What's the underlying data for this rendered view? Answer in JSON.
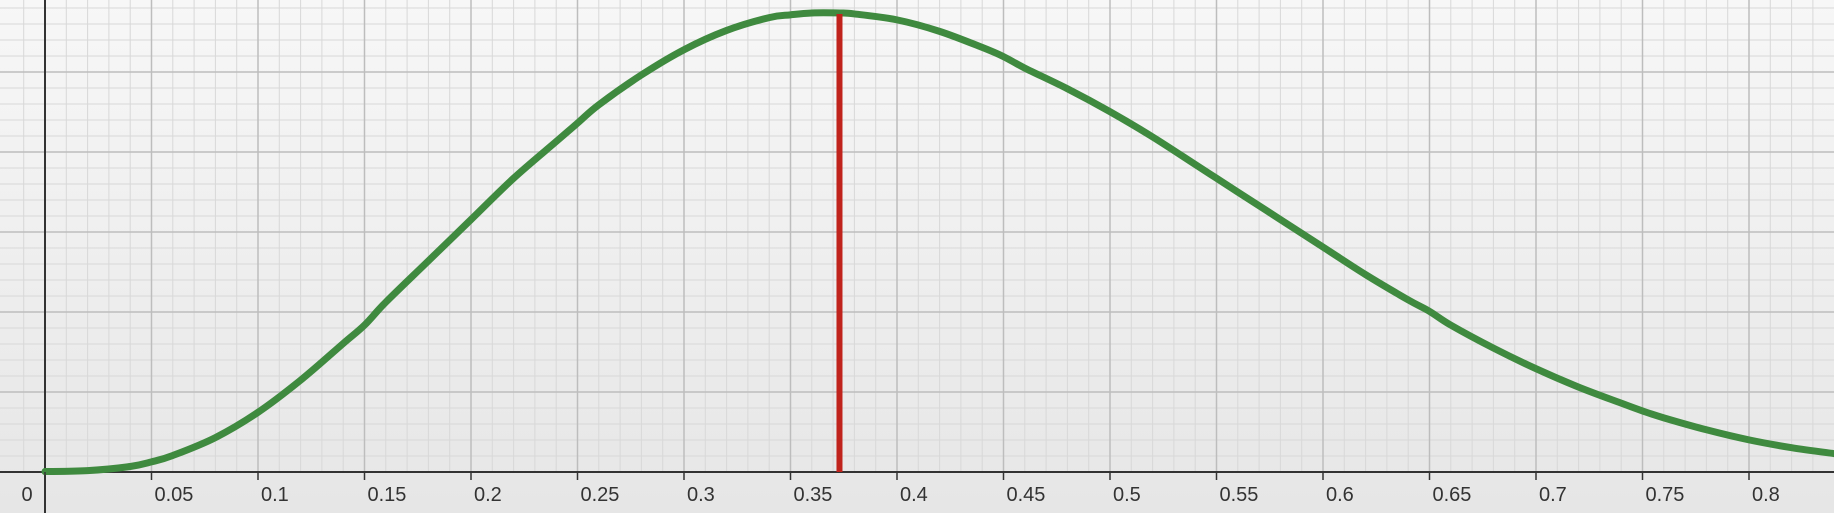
{
  "chart_data": {
    "type": "line",
    "title": "",
    "xlabel": "",
    "ylabel": "",
    "xlim": [
      -0.012,
      0.842
    ],
    "ylim": [
      0,
      1
    ],
    "grid": true,
    "x_ticks": [
      {
        "value": 0,
        "label": "0"
      },
      {
        "value": 0.05,
        "label": "0.05"
      },
      {
        "value": 0.1,
        "label": "0.1"
      },
      {
        "value": 0.15,
        "label": "0.15"
      },
      {
        "value": 0.2,
        "label": "0.2"
      },
      {
        "value": 0.25,
        "label": "0.25"
      },
      {
        "value": 0.3,
        "label": "0.3"
      },
      {
        "value": 0.35,
        "label": "0.35"
      },
      {
        "value": 0.4,
        "label": "0.4"
      },
      {
        "value": 0.45,
        "label": "0.45"
      },
      {
        "value": 0.5,
        "label": "0.5"
      },
      {
        "value": 0.55,
        "label": "0.55"
      },
      {
        "value": 0.6,
        "label": "0.6"
      },
      {
        "value": 0.65,
        "label": "0.65"
      },
      {
        "value": 0.7,
        "label": "0.7"
      },
      {
        "value": 0.75,
        "label": "0.75"
      },
      {
        "value": 0.8,
        "label": "0.8"
      }
    ],
    "series": [
      {
        "color": "#3f8a3f",
        "x": [
          0,
          0.02,
          0.04,
          0.05,
          0.06,
          0.08,
          0.1,
          0.12,
          0.14,
          0.15,
          0.16,
          0.18,
          0.2,
          0.22,
          0.24,
          0.25,
          0.26,
          0.28,
          0.3,
          0.32,
          0.34,
          0.35,
          0.36,
          0.373,
          0.38,
          0.4,
          0.42,
          0.44,
          0.45,
          0.46,
          0.48,
          0.5,
          0.52,
          0.54,
          0.55,
          0.56,
          0.58,
          0.6,
          0.62,
          0.64,
          0.65,
          0.66,
          0.68,
          0.7,
          0.72,
          0.74,
          0.75,
          0.76,
          0.78,
          0.8,
          0.82,
          0.84
        ],
        "y": [
          0.001,
          0.003,
          0.012,
          0.022,
          0.036,
          0.075,
          0.13,
          0.2,
          0.28,
          0.32,
          0.37,
          0.46,
          0.55,
          0.64,
          0.72,
          0.76,
          0.8,
          0.865,
          0.92,
          0.962,
          0.99,
          0.996,
          1.0,
          1.0,
          0.998,
          0.985,
          0.96,
          0.925,
          0.905,
          0.88,
          0.835,
          0.785,
          0.73,
          0.67,
          0.64,
          0.61,
          0.55,
          0.49,
          0.43,
          0.375,
          0.35,
          0.32,
          0.27,
          0.225,
          0.185,
          0.15,
          0.133,
          0.118,
          0.092,
          0.07,
          0.053,
          0.04
        ]
      }
    ],
    "vertical_marker": {
      "x": 0.373,
      "color": "#c0231c"
    },
    "x_axis_color": "#333333",
    "y_axis_color": "#333333",
    "grid_color": "#bdbdbd"
  }
}
